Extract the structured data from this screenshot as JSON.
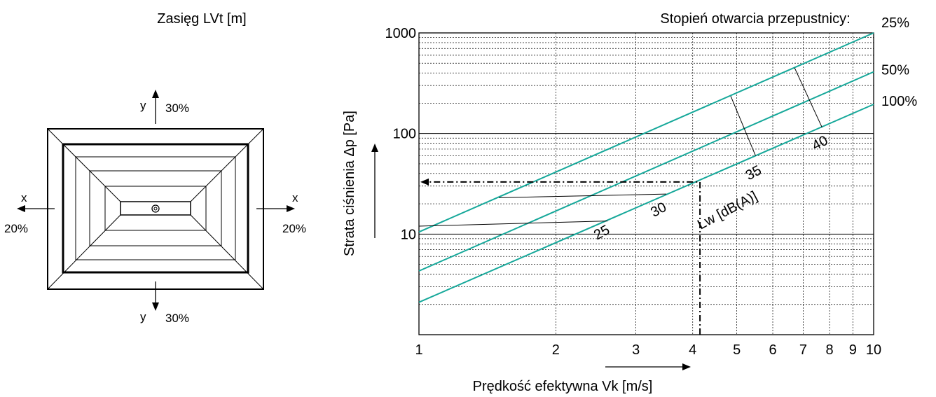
{
  "diagram": {
    "title": "Zasięg LVt [m]",
    "top": {
      "axis": "y",
      "percent": "30%"
    },
    "bottom": {
      "axis": "y",
      "percent": "30%"
    },
    "left": {
      "axis": "x",
      "percent": "20%"
    },
    "right": {
      "axis": "x",
      "percent": "20%"
    }
  },
  "chart_data": {
    "type": "line",
    "title": "",
    "xlabel": "Prędkość efektywna Vk [m/s]",
    "ylabel": "Strata ciśnienia Δp [Pa]",
    "xscale": "log",
    "yscale": "log",
    "xlim": [
      1,
      10
    ],
    "ylim": [
      1,
      1000
    ],
    "x_ticks": [
      1,
      2,
      3,
      4,
      5,
      6,
      7,
      8,
      9,
      10
    ],
    "y_ticks": [
      10,
      100,
      1000
    ],
    "legend_title": "Stopień otwarcia przepustnicy:",
    "series_color": "#16a89a",
    "series": [
      {
        "name": "25%",
        "x": [
          1,
          10
        ],
        "y": [
          10.5,
          1000
        ]
      },
      {
        "name": "50%",
        "x": [
          1,
          10
        ],
        "y": [
          4.3,
          410
        ]
      },
      {
        "name": "100%",
        "x": [
          1,
          10
        ],
        "y": [
          2.1,
          195
        ]
      }
    ],
    "sound_label": "Lw [dB(A)]",
    "sound_lines": [
      {
        "label": "25",
        "from": [
          1.0,
          12.0
        ],
        "to": [
          2.6,
          13.5
        ]
      },
      {
        "label": "30",
        "from": [
          1.5,
          23.0
        ],
        "to": [
          3.5,
          25.0
        ]
      },
      {
        "label": "35",
        "from": [
          4.85,
          235
        ],
        "to": [
          5.5,
          60
        ]
      },
      {
        "label": "40",
        "from": [
          6.7,
          450
        ],
        "to": [
          7.7,
          115
        ]
      }
    ],
    "example": {
      "x": 4.15,
      "y": 33
    }
  }
}
